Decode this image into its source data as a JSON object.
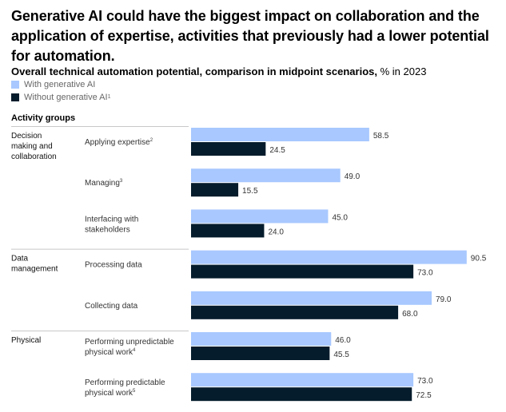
{
  "headline": "Generative AI could have the biggest impact on collaboration and the application of expertise, activities that previously had a lower potential for automation.",
  "subtitle_bold": "Overall technical automation potential, comparison in midpoint scenarios,",
  "subtitle_unit": "% in 2023",
  "legend": [
    {
      "label": "With generative AI",
      "sup": ""
    },
    {
      "label": "Without generative AI",
      "sup": "1"
    }
  ],
  "colors": {
    "with_gen_ai": "#a8c8ff",
    "without_gen_ai": "#051c2c",
    "divider": "#c8c8c8",
    "label": "#222222"
  },
  "chart_data": {
    "type": "bar",
    "orientation": "horizontal",
    "title": "Overall technical automation potential, comparison in midpoint scenarios, % in 2023",
    "group_axis_label": "Activity groups",
    "xlim": [
      0,
      100
    ],
    "series_names": [
      "With generative AI",
      "Without generative AI"
    ],
    "groups": [
      {
        "name": "Decision making and collaboration",
        "name_lines": [
          "Decision",
          "making and",
          "collaboration"
        ],
        "items": [
          {
            "label_lines": [
              "Applying expertise"
            ],
            "sup": "2",
            "with_gen_ai": 58.5,
            "without_gen_ai": 24.5
          },
          {
            "label_lines": [
              "Managing"
            ],
            "sup": "3",
            "with_gen_ai": 49.0,
            "without_gen_ai": 15.5
          },
          {
            "label_lines": [
              "Interfacing with",
              "stakeholders"
            ],
            "sup": "",
            "with_gen_ai": 45.0,
            "without_gen_ai": 24.0
          }
        ]
      },
      {
        "name": "Data management",
        "name_lines": [
          "Data",
          "management"
        ],
        "items": [
          {
            "label_lines": [
              "Processing data"
            ],
            "sup": "",
            "with_gen_ai": 90.5,
            "without_gen_ai": 73.0
          },
          {
            "label_lines": [
              "Collecting data"
            ],
            "sup": "",
            "with_gen_ai": 79.0,
            "without_gen_ai": 68.0
          }
        ]
      },
      {
        "name": "Physical",
        "name_lines": [
          "Physical"
        ],
        "items": [
          {
            "label_lines": [
              "Performing unpredictable",
              "physical work"
            ],
            "sup": "4",
            "with_gen_ai": 46.0,
            "without_gen_ai": 45.5
          },
          {
            "label_lines": [
              "Performing predictable",
              "physical work"
            ],
            "sup": "5",
            "with_gen_ai": 73.0,
            "without_gen_ai": 72.5
          }
        ]
      }
    ]
  }
}
